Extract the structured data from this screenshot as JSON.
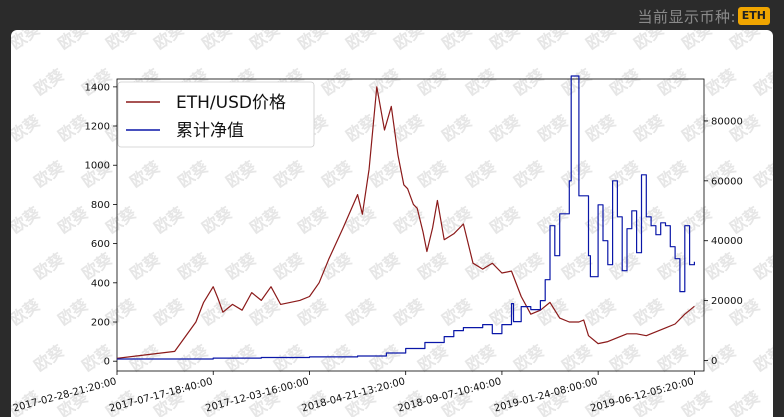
{
  "header": {
    "currency_label": "当前显示币种:",
    "currency_value": "ETH"
  },
  "watermark": "欧葵",
  "colors": {
    "eth": "#8b1a1a",
    "nav": "#0a17a8",
    "accent": "#f0a500"
  },
  "chart_data": {
    "type": "line",
    "dual_axis": true,
    "x_tick_labels": [
      "2017-02-28-21:20:00",
      "2017-07-17-18:40:00",
      "2017-12-03-16:00:00",
      "2018-04-21-13:20:00",
      "2018-09-07-10:40:00",
      "2019-01-24-08:00:00",
      "2019-06-12-05:20:00"
    ],
    "y_left": {
      "ticks": [
        0,
        200,
        400,
        600,
        800,
        1000,
        1200,
        1400
      ],
      "lim": [
        -50,
        1440
      ]
    },
    "y_right": {
      "ticks": [
        0,
        20000,
        40000,
        60000,
        80000
      ],
      "lim": [
        -3500,
        94000
      ]
    },
    "x_range": [
      0,
      6.1
    ],
    "legend_position": "top-left",
    "series": [
      {
        "name": "ETH/USD价格",
        "axis": "left",
        "x": [
          0.0,
          0.6,
          0.82,
          0.9,
          1.0,
          1.05,
          1.1,
          1.2,
          1.3,
          1.4,
          1.5,
          1.6,
          1.7,
          1.8,
          1.9,
          2.0,
          2.1,
          2.2,
          2.35,
          2.5,
          2.55,
          2.62,
          2.7,
          2.78,
          2.85,
          2.92,
          2.98,
          3.02,
          3.08,
          3.12,
          3.18,
          3.22,
          3.28,
          3.33,
          3.4,
          3.5,
          3.6,
          3.7,
          3.8,
          3.9,
          4.0,
          4.1,
          4.2,
          4.3,
          4.4,
          4.5,
          4.6,
          4.7,
          4.8,
          4.85,
          4.9,
          5.0,
          5.1,
          5.2,
          5.3,
          5.4,
          5.5,
          5.6,
          5.7,
          5.8,
          5.9,
          6.0
        ],
        "y": [
          15,
          50,
          200,
          300,
          380,
          320,
          250,
          290,
          260,
          350,
          310,
          380,
          290,
          300,
          310,
          330,
          400,
          520,
          680,
          850,
          750,
          980,
          1400,
          1180,
          1300,
          1050,
          900,
          880,
          800,
          780,
          660,
          560,
          680,
          820,
          620,
          650,
          700,
          500,
          470,
          500,
          450,
          460,
          330,
          240,
          260,
          300,
          220,
          200,
          200,
          210,
          130,
          90,
          100,
          120,
          140,
          140,
          130,
          150,
          170,
          190,
          240,
          280
        ]
      },
      {
        "name": "累计净值",
        "axis": "right",
        "x": [
          0.0,
          1.0,
          1.5,
          2.0,
          2.5,
          2.8,
          3.0,
          3.2,
          3.4,
          3.5,
          3.6,
          3.8,
          3.9,
          4.0,
          4.1,
          4.12,
          4.2,
          4.3,
          4.4,
          4.45,
          4.5,
          4.55,
          4.6,
          4.7,
          4.72,
          4.8,
          4.9,
          4.92,
          5.0,
          5.05,
          5.1,
          5.15,
          5.2,
          5.25,
          5.3,
          5.35,
          5.4,
          5.45,
          5.5,
          5.55,
          5.6,
          5.65,
          5.7,
          5.75,
          5.8,
          5.85,
          5.9,
          5.95,
          6.0
        ],
        "y": [
          500,
          800,
          1000,
          1200,
          1500,
          2500,
          4000,
          6000,
          8000,
          10000,
          11000,
          12000,
          9000,
          12000,
          19000,
          13000,
          18000,
          17000,
          20000,
          27000,
          45000,
          35000,
          49000,
          60000,
          95000,
          55000,
          35000,
          28000,
          52000,
          40000,
          32000,
          60000,
          48000,
          30000,
          44000,
          50000,
          36000,
          62000,
          48000,
          45000,
          42000,
          46000,
          45000,
          38000,
          34000,
          23000,
          45000,
          32000,
          33000
        ]
      }
    ]
  }
}
